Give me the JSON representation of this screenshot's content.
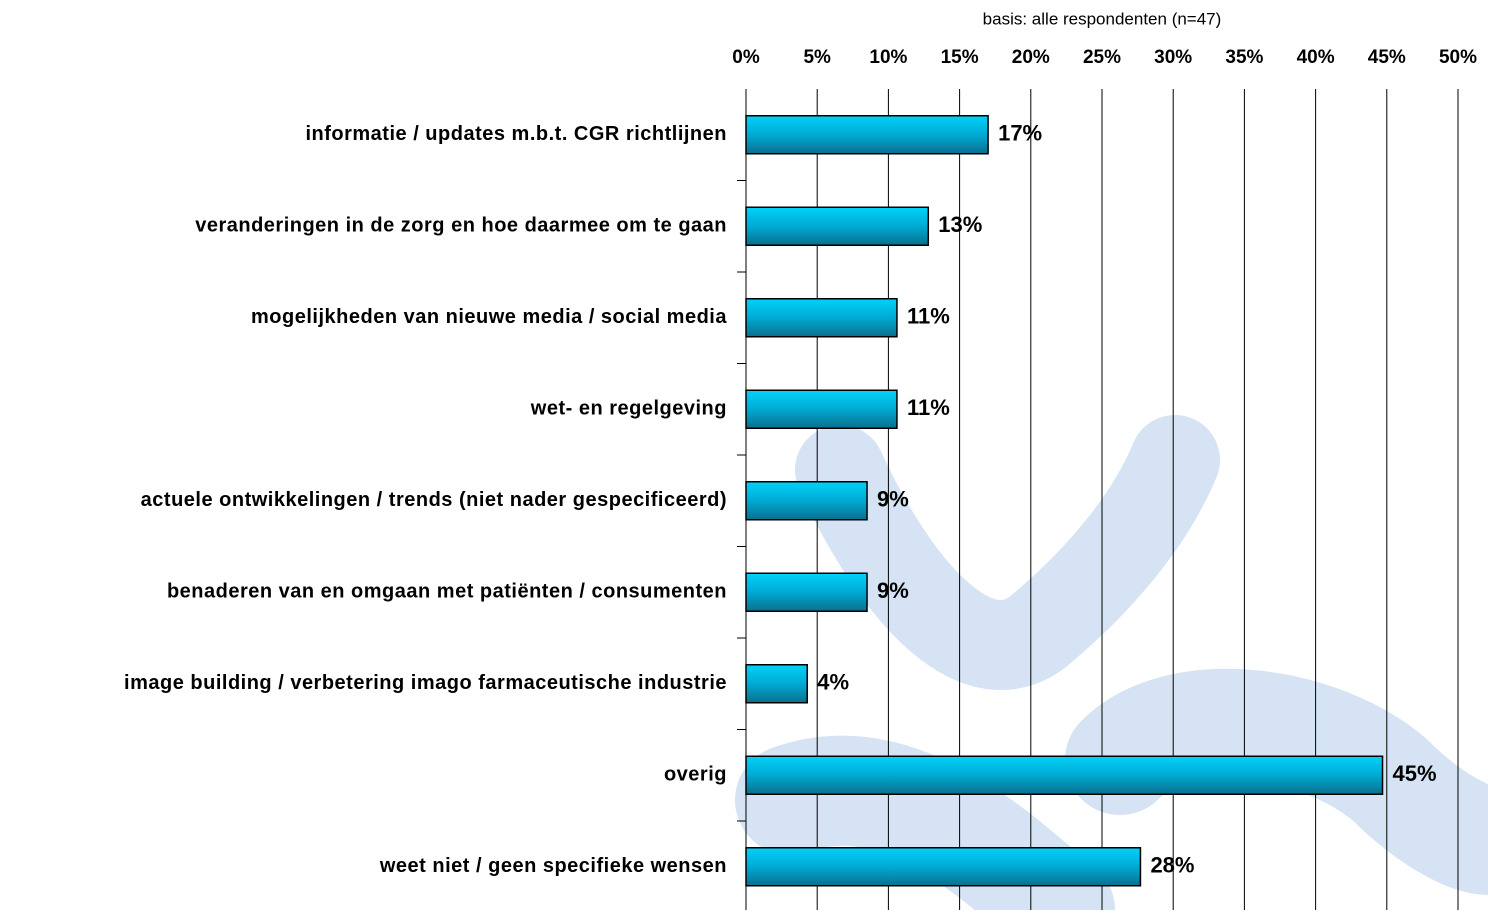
{
  "chart_data": {
    "type": "bar",
    "orientation": "horizontal",
    "subtitle": "basis: alle respondenten (n=47)",
    "categories": [
      "informatie / updates m.b.t. CGR richtlijnen",
      "veranderingen in de zorg en hoe daarmee om te gaan",
      "mogelijkheden van nieuwe media / social media",
      "wet- en regelgeving",
      "actuele ontwikkelingen / trends (niet nader gespecificeerd)",
      "benaderen van en omgaan met patiënten / consumenten",
      "image building / verbetering imago farmaceutische industrie",
      "overig",
      "weet niet / geen specifieke wensen"
    ],
    "values": [
      17,
      12.8,
      10.6,
      10.6,
      8.5,
      8.5,
      4.3,
      44.7,
      27.7
    ],
    "value_labels": [
      "17%",
      "13%",
      "11%",
      "11%",
      "9%",
      "9%",
      "4%",
      "45%",
      "28%"
    ],
    "color": "#00b4dc",
    "xlim": [
      0,
      50
    ],
    "xticks": [
      {
        "value": 0,
        "label": "0%"
      },
      {
        "value": 5,
        "label": "5%"
      },
      {
        "value": 10,
        "label": "10%"
      },
      {
        "value": 15,
        "label": "15%"
      },
      {
        "value": 20,
        "label": "20%"
      },
      {
        "value": 25,
        "label": "25%"
      },
      {
        "value": 30,
        "label": "30%"
      },
      {
        "value": 35,
        "label": "35%"
      },
      {
        "value": 40,
        "label": "40%"
      },
      {
        "value": 45,
        "label": "45%"
      },
      {
        "value": 50,
        "label": "50%"
      }
    ],
    "grid": true
  }
}
